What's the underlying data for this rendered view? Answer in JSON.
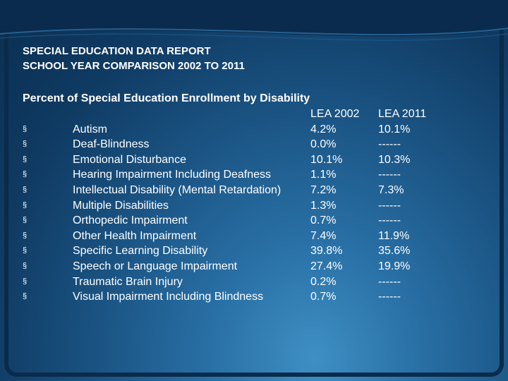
{
  "title_lines": [
    "SPECIAL EDUCATION DATA REPORT",
    "SCHOOL YEAR COMPARISON 2002 TO 2011"
  ],
  "subheading": "Percent of Special Education Enrollment by Disability",
  "table": {
    "columns": [
      "LEA 2002",
      "LEA 2011"
    ],
    "bullet_glyph": "§",
    "rows": [
      {
        "label": "Autism",
        "v2002": "4.2%",
        "v2011": "10.1%"
      },
      {
        "label": "Deaf-Blindness",
        "v2002": "0.0%",
        "v2011": "------"
      },
      {
        "label": "Emotional Disturbance",
        "v2002": "10.1%",
        "v2011": "10.3%"
      },
      {
        "label": "Hearing Impairment Including Deafness",
        "v2002": "1.1%",
        "v2011": "------"
      },
      {
        "label": "Intellectual Disability (Mental Retardation)",
        "v2002": "7.2%",
        "v2011": "7.3%"
      },
      {
        "label": "Multiple Disabilities",
        "v2002": "1.3%",
        "v2011": "------"
      },
      {
        "label": "Orthopedic Impairment",
        "v2002": "0.7%",
        "v2011": "------"
      },
      {
        "label": "Other Health Impairment",
        "v2002": "7.4%",
        "v2011": "11.9%"
      },
      {
        "label": "Specific Learning Disability",
        "v2002": "39.8%",
        "v2011": "35.6%"
      },
      {
        "label": "Speech or Language Impairment",
        "v2002": "27.4%",
        "v2011": "19.9%"
      },
      {
        "label": "Traumatic Brain Injury",
        "v2002": "0.2%",
        "v2011": "------"
      },
      {
        "label": "Visual Impairment Including Blindness",
        "v2002": "0.7%",
        "v2011": "------"
      }
    ]
  },
  "colors": {
    "text": "#ffffff",
    "background_dark": "#0b2f52",
    "background_light": "#3f8fc4"
  }
}
